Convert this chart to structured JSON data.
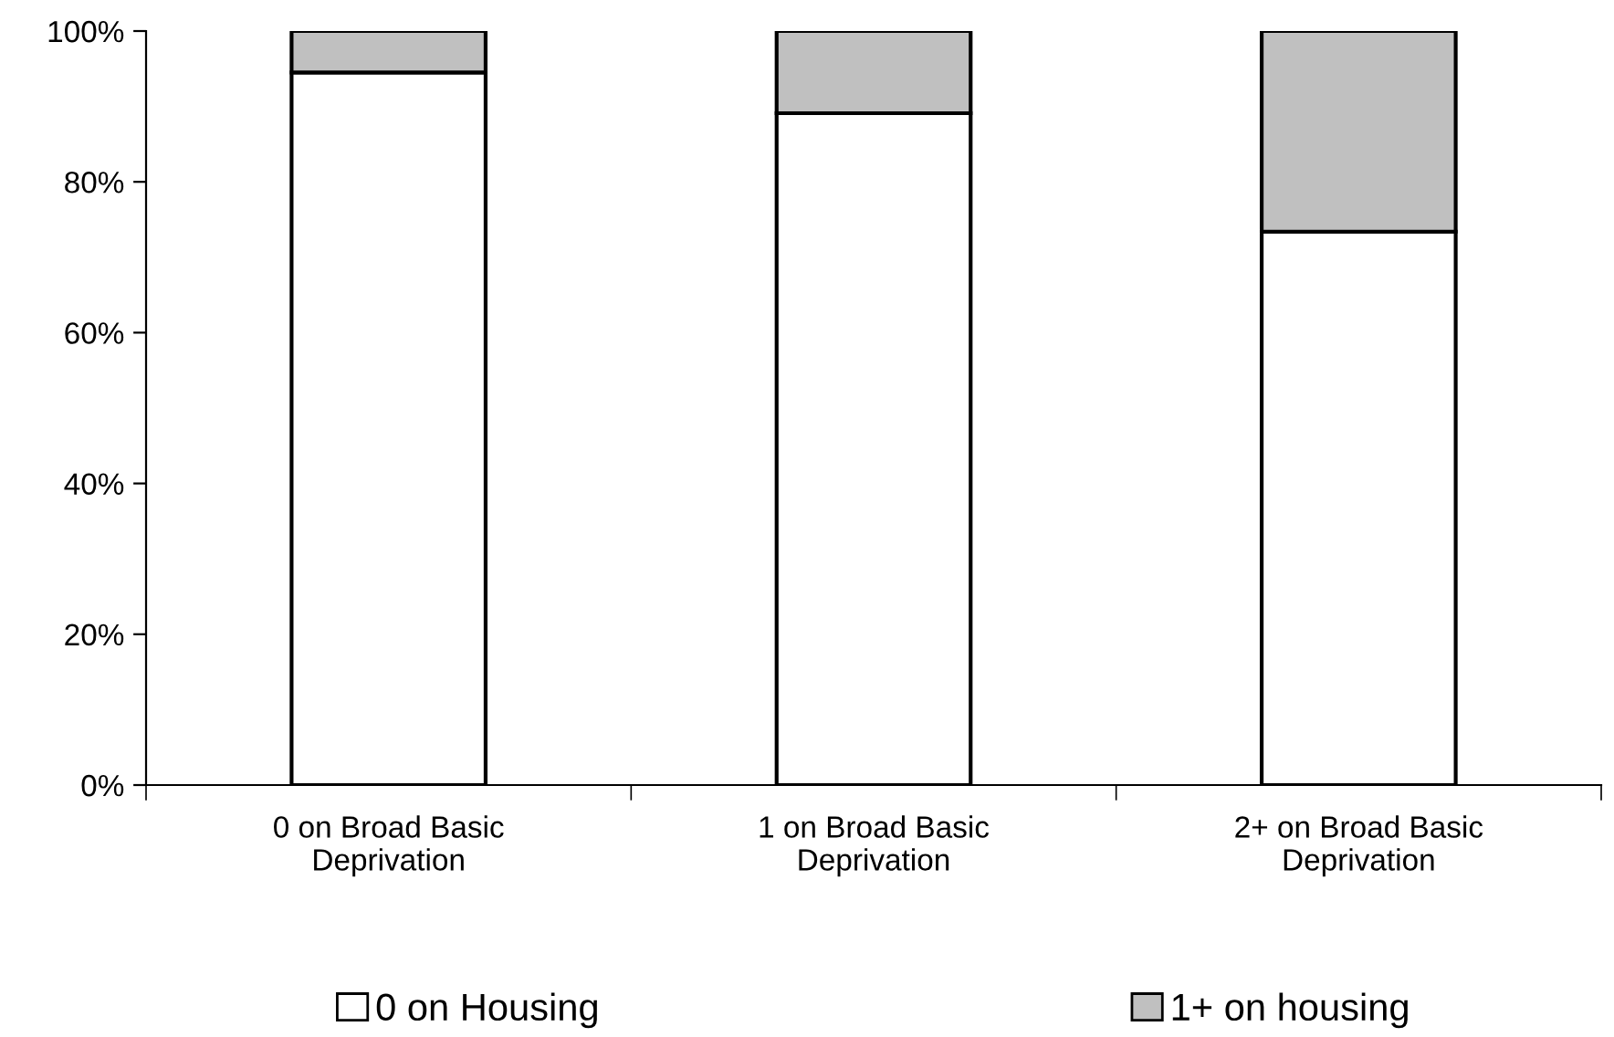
{
  "chart_data": {
    "type": "bar",
    "stacked": true,
    "categories": [
      "0 on Broad Basic\nDeprivation",
      "1 on Broad Basic\nDeprivation",
      "2+ on Broad Basic\nDeprivation"
    ],
    "series": [
      {
        "name": "0 on Housing",
        "color": "#ffffff",
        "values": [
          94.5,
          89.1,
          73.4
        ]
      },
      {
        "name": "1+ on housing",
        "color": "#c0c0c0",
        "values": [
          5.5,
          10.9,
          26.6
        ]
      }
    ],
    "ylim": [
      0,
      100
    ],
    "yticks": [
      {
        "value": 0,
        "label": "0%"
      },
      {
        "value": 20,
        "label": "20%"
      },
      {
        "value": 40,
        "label": "40%"
      },
      {
        "value": 60,
        "label": "60%"
      },
      {
        "value": 80,
        "label": "80%"
      },
      {
        "value": 100,
        "label": "100%"
      }
    ],
    "grid": false,
    "legend": "bottom"
  }
}
